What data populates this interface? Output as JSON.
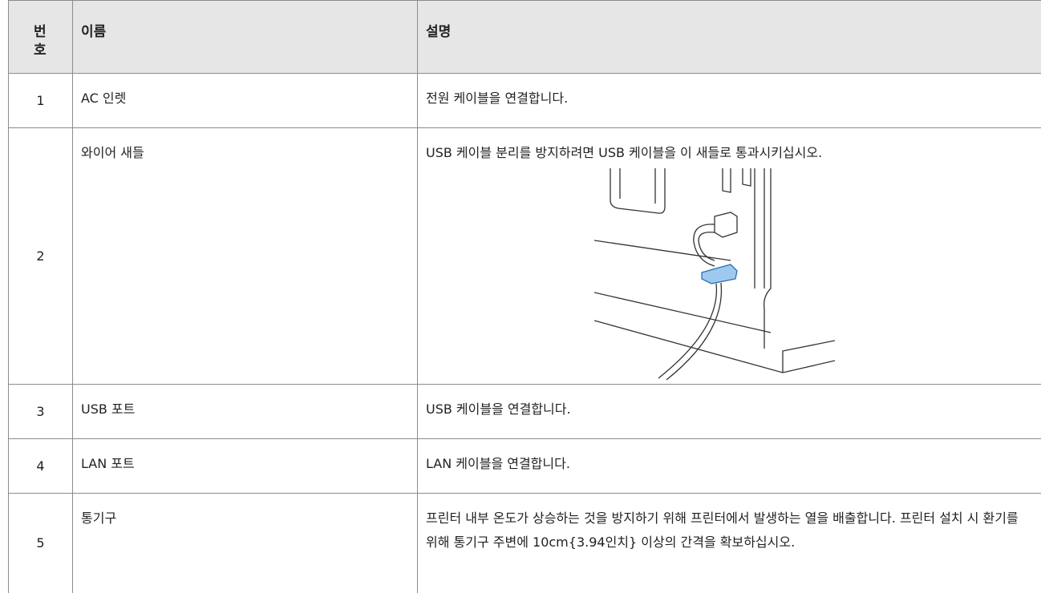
{
  "table": {
    "header": [
      "번호",
      "이름",
      "설명"
    ],
    "rows": [
      [
        1,
        "AC 인렛",
        "전원 케이블을 연결합니다."
      ],
      [
        2,
        "와이어 새들",
        "USB 케이블 분리를 방지하려면 USB 케이블을 이 새들로 통과시키십시오."
      ],
      [
        3,
        "USB 포트",
        "USB 케이블을 연결합니다."
      ],
      [
        4,
        "LAN 포트",
        "LAN 케이블을 연결합니다."
      ],
      [
        5,
        "통기구",
        "프린터 내부 온도가 상승하는 것을 방지하기 위해 프린터에서 발생하는 열을 배출합니다. 프린터 설치 시 환기를 위해 통기구 주변에 10cm{3.94인치} 이상의 간격을 확보하십시오."
      ]
    ]
  }
}
